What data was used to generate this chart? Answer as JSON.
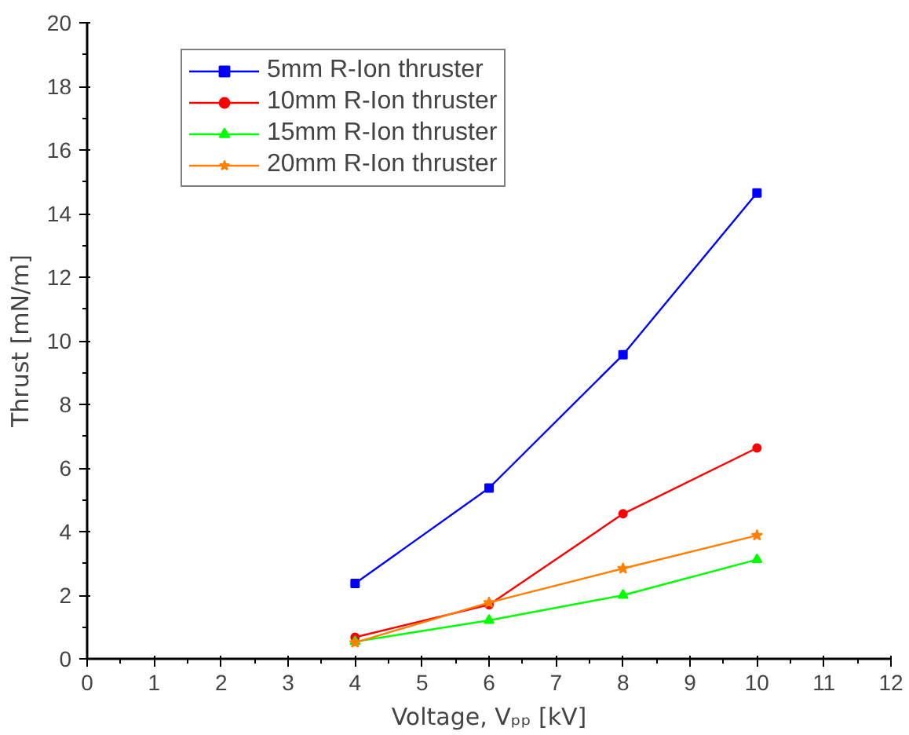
{
  "chart_data": {
    "type": "line",
    "xlabel": "Voltage, Vₚₚ [kV]",
    "ylabel": "Thrust [mN/m]",
    "x": [
      4,
      6,
      8,
      10
    ],
    "series": [
      {
        "name": "5mm R-Ion thruster",
        "color": "#0000ff",
        "marker": "square",
        "values": [
          2.37,
          5.37,
          9.56,
          14.65
        ]
      },
      {
        "name": "10mm R-Ion thruster",
        "color": "#ff0000",
        "marker": "circle",
        "values": [
          0.68,
          1.7,
          4.56,
          6.63
        ]
      },
      {
        "name": "15mm R-Ion thruster",
        "color": "#00ff00",
        "marker": "triangle",
        "values": [
          0.54,
          1.21,
          2.0,
          3.12
        ]
      },
      {
        "name": "20mm R-Ion thruster",
        "color": "#ff8000",
        "marker": "star",
        "values": [
          0.51,
          1.77,
          2.84,
          3.88
        ]
      }
    ],
    "xlim": [
      0,
      12
    ],
    "xticks": [
      0,
      1,
      2,
      3,
      4,
      5,
      6,
      7,
      8,
      9,
      10,
      11,
      12
    ],
    "ylim": [
      0,
      20
    ],
    "yticks": [
      0,
      2,
      4,
      6,
      8,
      10,
      12,
      14,
      16,
      18,
      20
    ],
    "grid": false,
    "legend": "top left",
    "line_style": "solid"
  }
}
